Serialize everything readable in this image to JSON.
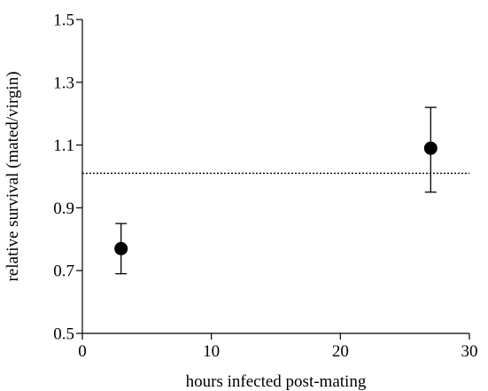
{
  "chart_data": {
    "type": "scatter",
    "title": "",
    "xlabel": "hours infected post-mating",
    "ylabel": "relative survival (mated/virgin)",
    "xlim": [
      0,
      30
    ],
    "ylim": [
      0.5,
      1.5
    ],
    "x_ticks": [
      0,
      10,
      20,
      30
    ],
    "y_ticks": [
      0.5,
      0.7,
      0.9,
      1.1,
      1.3,
      1.5
    ],
    "x_tick_labels": [
      "0",
      "10",
      "20",
      "30"
    ],
    "y_tick_labels": [
      "0.5",
      "0.7",
      "0.9",
      "1.1",
      "1.3",
      "1.5"
    ],
    "reference_line": {
      "y": 1.01,
      "style": "dotted"
    },
    "grid": false,
    "points": [
      {
        "x": 3,
        "y": 0.77,
        "err_low": 0.69,
        "err_high": 0.85
      },
      {
        "x": 27,
        "y": 1.09,
        "err_low": 0.95,
        "err_high": 1.22
      }
    ]
  }
}
